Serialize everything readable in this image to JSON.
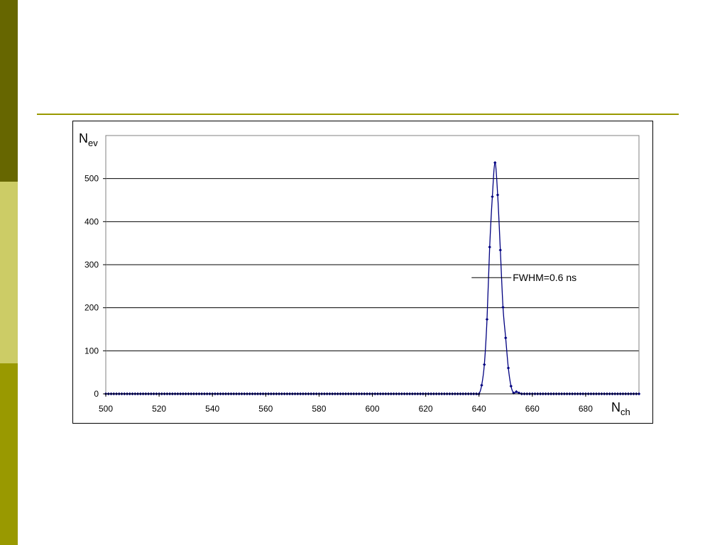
{
  "theme": {
    "band_top": "#666600",
    "band_mid": "#cccc66",
    "band_bottom": "#999900",
    "rule": "#999900",
    "series": "#000080",
    "grid": "#000000",
    "plot_border": "#808080"
  },
  "chart_data": {
    "type": "line",
    "ylabel": {
      "main": "N",
      "sub": "ev"
    },
    "xlabel": {
      "main": "N",
      "sub": "ch"
    },
    "xlim": [
      500,
      700
    ],
    "ylim": [
      0,
      600
    ],
    "x_ticks": [
      500,
      520,
      540,
      560,
      580,
      600,
      620,
      640,
      660,
      680
    ],
    "y_ticks": [
      0,
      100,
      200,
      300,
      400,
      500
    ],
    "grid": "horizontal",
    "markers": "diamond",
    "annotation": {
      "text": "FWHM=0.6 ns",
      "x": 650,
      "y": 270
    },
    "series": [
      {
        "x_start": 500,
        "x_step": 1,
        "values": [
          0,
          0,
          0,
          0,
          0,
          0,
          0,
          0,
          0,
          0,
          0,
          0,
          0,
          0,
          0,
          0,
          0,
          0,
          0,
          0,
          0,
          0,
          0,
          0,
          0,
          0,
          0,
          0,
          0,
          0,
          0,
          0,
          0,
          0,
          0,
          0,
          0,
          0,
          0,
          0,
          0,
          0,
          0,
          0,
          0,
          0,
          0,
          0,
          0,
          0,
          0,
          0,
          0,
          0,
          0,
          0,
          0,
          0,
          0,
          0,
          0,
          0,
          0,
          0,
          0,
          0,
          0,
          0,
          0,
          0,
          0,
          0,
          0,
          0,
          0,
          0,
          0,
          0,
          0,
          0,
          0,
          0,
          0,
          0,
          0,
          0,
          0,
          0,
          0,
          0,
          0,
          0,
          0,
          0,
          0,
          0,
          0,
          0,
          0,
          0,
          0,
          0,
          0,
          0,
          0,
          0,
          0,
          0,
          0,
          0,
          0,
          0,
          0,
          0,
          0,
          0,
          0,
          0,
          0,
          0,
          0,
          0,
          0,
          0,
          0,
          0,
          0,
          0,
          0,
          0,
          0,
          0,
          0,
          0,
          0,
          0,
          0,
          0,
          0,
          0,
          0,
          20,
          68,
          173,
          341,
          458,
          537,
          462,
          334,
          201,
          130,
          60,
          18,
          2,
          5,
          2,
          0,
          0,
          0,
          0,
          0,
          0,
          0,
          0,
          0,
          0,
          0,
          0,
          0,
          0,
          0,
          0,
          0,
          0,
          0,
          0,
          0,
          0,
          0,
          0,
          0,
          0,
          0,
          0,
          0,
          0,
          0,
          0,
          0,
          0,
          0,
          0,
          0,
          0,
          0,
          0,
          0,
          0,
          0,
          0,
          0
        ]
      }
    ]
  }
}
